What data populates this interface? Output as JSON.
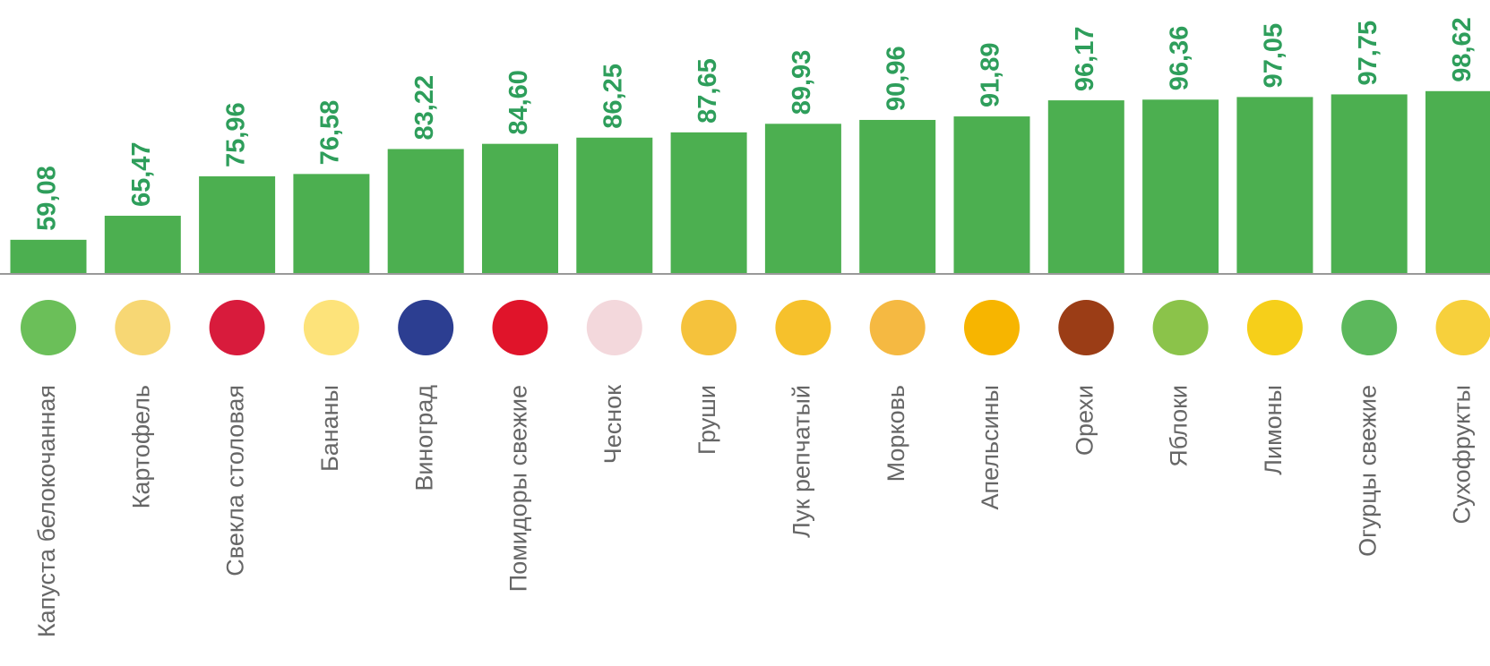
{
  "chart_data": {
    "type": "bar",
    "categories": [
      "Капуста белокочанная",
      "Картофель",
      "Свекла столовая",
      "Бананы",
      "Виноград",
      "Помидоры свежие",
      "Чеснок",
      "Груши",
      "Лук репчатый",
      "Морковь",
      "Апельсины",
      "Орехи",
      "Яблоки",
      "Лимоны",
      "Огурцы свежие",
      "Сухофрукты"
    ],
    "values": [
      59.08,
      65.47,
      75.96,
      76.58,
      83.22,
      84.6,
      86.25,
      87.65,
      89.93,
      90.96,
      91.89,
      96.17,
      96.36,
      97.05,
      97.75,
      98.62
    ],
    "value_labels": [
      "59,08",
      "65,47",
      "75,96",
      "76,58",
      "83,22",
      "84,60",
      "86,25",
      "87,65",
      "89,93",
      "90,96",
      "91,89",
      "96,17",
      "96,36",
      "97,05",
      "97,75",
      "98,62"
    ],
    "color": "#4caf50",
    "ylim": [
      50,
      100
    ]
  }
}
